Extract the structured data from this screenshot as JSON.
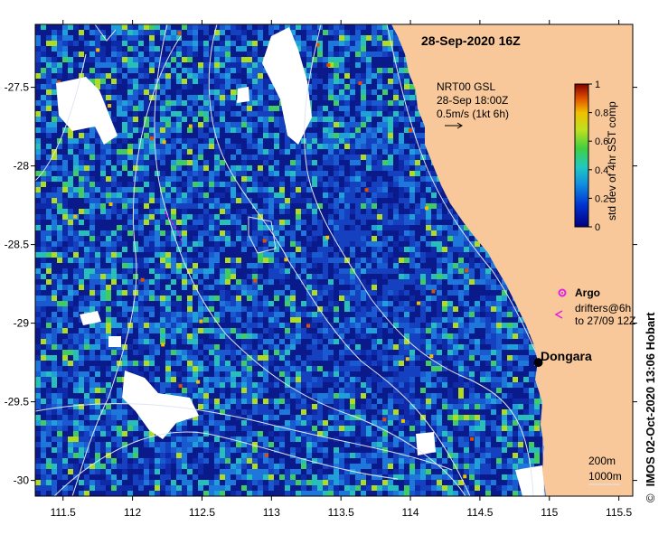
{
  "map": {
    "title": "28-Sep-2020 16Z",
    "x_ticks": [
      "111.5",
      "112",
      "112.5",
      "113",
      "113.5",
      "114",
      "114.5",
      "115",
      "115.5"
    ],
    "y_ticks": [
      "-27.5",
      "-28",
      "-28.5",
      "-29",
      "-29.5",
      "-30"
    ],
    "x_tick_values": [
      111.5,
      112,
      112.5,
      113,
      113.5,
      114,
      114.5,
      115,
      115.5
    ],
    "y_tick_values": [
      -27.5,
      -28,
      -28.5,
      -29,
      -29.5,
      -30
    ],
    "lon_range": [
      111.3,
      115.6
    ],
    "lat_range": [
      -27.1,
      -30.1
    ],
    "land_color": "#f8c89a",
    "ocean_low_color": "#08126e",
    "contour_color": "#dfe6f2"
  },
  "current": {
    "model": "NRT00 GSL",
    "time": "28-Sep 18:00Z",
    "scale": "0.5m/s (1kt 6h)"
  },
  "colorbar": {
    "label": "std dev of 4hr SST comp",
    "ticks": [
      "0",
      "0.2",
      "0.4",
      "0.6",
      "0.8",
      "1"
    ],
    "range": [
      0,
      1
    ]
  },
  "legend": {
    "argo": "Argo",
    "drifters_line1": "drifters@6h",
    "drifters_line2": "to 27/09 12Z",
    "argo_color": "#e020e0"
  },
  "place": {
    "name": "Dongara",
    "lon": 114.92,
    "lat": -29.25
  },
  "depth": {
    "label1": "200m",
    "label2": "1000m"
  },
  "credit": {
    "symbol": "©",
    "text": "IMOS 02-Oct-2020 13:06 Hobart"
  }
}
